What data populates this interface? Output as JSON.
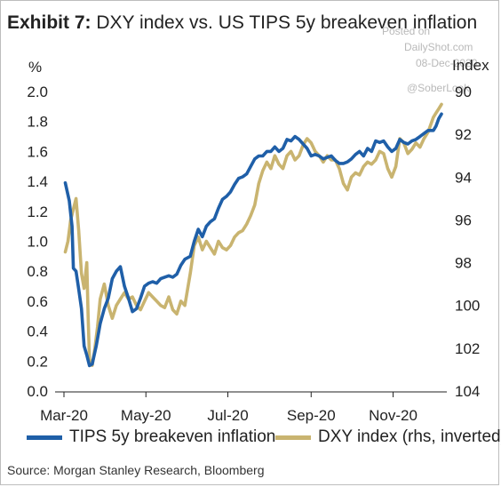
{
  "title_prefix": "Exhibit 7:",
  "title_text": "DXY index vs. US TIPS 5y breakeven inflation",
  "watermark": {
    "line1": "Posted on",
    "line2": "DailyShot.com",
    "line3": "08-Dec-2020",
    "line4": "@SoberLook"
  },
  "source": "Source: Morgan Stanley Research, Bloomberg",
  "colors": {
    "tips": "#1f5fa8",
    "dxy": "#c9b470"
  },
  "chart_data": {
    "type": "line",
    "left_axis": {
      "unit": "%",
      "range": [
        0,
        2
      ],
      "ticks": [
        "0.0",
        "0.2",
        "0.4",
        "0.6",
        "0.8",
        "1.0",
        "1.2",
        "1.4",
        "1.6",
        "1.8",
        "2.0"
      ]
    },
    "right_axis": {
      "unit": "Index",
      "inverted": true,
      "range": [
        90,
        104
      ],
      "ticks": [
        "90",
        "92",
        "94",
        "96",
        "98",
        "100",
        "102",
        "104"
      ]
    },
    "x_axis": {
      "ticks": [
        "Mar-20",
        "May-20",
        "Jul-20",
        "Sep-20",
        "Nov-20"
      ]
    },
    "series": [
      {
        "name": "TIPS 5y breakeven inflation",
        "axis": "left",
        "points": [
          [
            "Mar-02",
            1.39
          ],
          [
            "Mar-05",
            1.27
          ],
          [
            "Mar-07",
            1.1
          ],
          [
            "Mar-08",
            0.82
          ],
          [
            "Mar-10",
            0.8
          ],
          [
            "Mar-12",
            0.68
          ],
          [
            "Mar-14",
            0.55
          ],
          [
            "Mar-16",
            0.3
          ],
          [
            "Mar-18",
            0.24
          ],
          [
            "Mar-20",
            0.17
          ],
          [
            "Mar-22",
            0.18
          ],
          [
            "Mar-25",
            0.3
          ],
          [
            "Mar-28",
            0.45
          ],
          [
            "Mar-31",
            0.55
          ],
          [
            "Apr-03",
            0.62
          ],
          [
            "Apr-06",
            0.75
          ],
          [
            "Apr-09",
            0.8
          ],
          [
            "Apr-12",
            0.83
          ],
          [
            "Apr-15",
            0.7
          ],
          [
            "Apr-18",
            0.62
          ],
          [
            "Apr-21",
            0.53
          ],
          [
            "Apr-24",
            0.55
          ],
          [
            "Apr-27",
            0.62
          ],
          [
            "Apr-30",
            0.7
          ],
          [
            "May-03",
            0.72
          ],
          [
            "May-06",
            0.73
          ],
          [
            "May-09",
            0.72
          ],
          [
            "May-12",
            0.75
          ],
          [
            "May-15",
            0.76
          ],
          [
            "May-18",
            0.77
          ],
          [
            "May-21",
            0.76
          ],
          [
            "May-24",
            0.78
          ],
          [
            "May-27",
            0.84
          ],
          [
            "May-30",
            0.88
          ],
          [
            "Jun-03",
            0.9
          ],
          [
            "Jun-06",
            1.0
          ],
          [
            "Jun-09",
            1.08
          ],
          [
            "Jun-12",
            1.03
          ],
          [
            "Jun-15",
            1.1
          ],
          [
            "Jun-18",
            1.13
          ],
          [
            "Jun-21",
            1.15
          ],
          [
            "Jun-24",
            1.22
          ],
          [
            "Jun-27",
            1.28
          ],
          [
            "Jun-30",
            1.3
          ],
          [
            "Jul-03",
            1.33
          ],
          [
            "Jul-06",
            1.38
          ],
          [
            "Jul-09",
            1.42
          ],
          [
            "Jul-12",
            1.43
          ],
          [
            "Jul-15",
            1.45
          ],
          [
            "Jul-18",
            1.5
          ],
          [
            "Jul-21",
            1.55
          ],
          [
            "Jul-24",
            1.57
          ],
          [
            "Jul-27",
            1.57
          ],
          [
            "Jul-30",
            1.6
          ],
          [
            "Aug-02",
            1.6
          ],
          [
            "Aug-05",
            1.63
          ],
          [
            "Aug-08",
            1.6
          ],
          [
            "Aug-11",
            1.62
          ],
          [
            "Aug-14",
            1.68
          ],
          [
            "Aug-17",
            1.67
          ],
          [
            "Aug-20",
            1.7
          ],
          [
            "Aug-23",
            1.68
          ],
          [
            "Aug-26",
            1.65
          ],
          [
            "Aug-29",
            1.62
          ],
          [
            "Sep-01",
            1.57
          ],
          [
            "Sep-04",
            1.58
          ],
          [
            "Sep-07",
            1.57
          ],
          [
            "Sep-10",
            1.55
          ],
          [
            "Sep-13",
            1.56
          ],
          [
            "Sep-16",
            1.57
          ],
          [
            "Sep-19",
            1.54
          ],
          [
            "Sep-22",
            1.52
          ],
          [
            "Sep-25",
            1.52
          ],
          [
            "Sep-28",
            1.53
          ],
          [
            "Oct-01",
            1.55
          ],
          [
            "Oct-04",
            1.58
          ],
          [
            "Oct-07",
            1.6
          ],
          [
            "Oct-10",
            1.57
          ],
          [
            "Oct-13",
            1.62
          ],
          [
            "Oct-16",
            1.6
          ],
          [
            "Oct-19",
            1.67
          ],
          [
            "Oct-22",
            1.66
          ],
          [
            "Oct-25",
            1.67
          ],
          [
            "Oct-28",
            1.63
          ],
          [
            "Oct-31",
            1.6
          ],
          [
            "Nov-03",
            1.62
          ],
          [
            "Nov-06",
            1.68
          ],
          [
            "Nov-09",
            1.66
          ],
          [
            "Nov-12",
            1.65
          ],
          [
            "Nov-15",
            1.67
          ],
          [
            "Nov-18",
            1.68
          ],
          [
            "Nov-21",
            1.7
          ],
          [
            "Nov-24",
            1.72
          ],
          [
            "Nov-27",
            1.74
          ],
          [
            "Dec-01",
            1.74
          ],
          [
            "Dec-03",
            1.77
          ],
          [
            "Dec-05",
            1.82
          ],
          [
            "Dec-07",
            1.85
          ]
        ]
      },
      {
        "name": "DXY index (rhs, inverted)",
        "axis": "right",
        "points": [
          [
            "Mar-02",
            97.5
          ],
          [
            "Mar-04",
            97.0
          ],
          [
            "Mar-06",
            96.0
          ],
          [
            "Mar-08",
            95.5
          ],
          [
            "Mar-10",
            95.0
          ],
          [
            "Mar-12",
            96.5
          ],
          [
            "Mar-14",
            98.5
          ],
          [
            "Mar-16",
            99.2
          ],
          [
            "Mar-18",
            98.0
          ],
          [
            "Mar-19",
            100.5
          ],
          [
            "Mar-20",
            102.5
          ],
          [
            "Mar-22",
            102.8
          ],
          [
            "Mar-24",
            102.0
          ],
          [
            "Mar-26",
            101.0
          ],
          [
            "Mar-28",
            99.7
          ],
          [
            "Mar-31",
            99.0
          ],
          [
            "Apr-03",
            100.0
          ],
          [
            "Apr-06",
            100.6
          ],
          [
            "Apr-09",
            100.0
          ],
          [
            "Apr-12",
            99.7
          ],
          [
            "Apr-15",
            99.4
          ],
          [
            "Apr-18",
            99.7
          ],
          [
            "Apr-21",
            99.6
          ],
          [
            "Apr-24",
            100.0
          ],
          [
            "Apr-27",
            100.2
          ],
          [
            "Apr-30",
            99.8
          ],
          [
            "May-03",
            99.4
          ],
          [
            "May-06",
            99.6
          ],
          [
            "May-09",
            99.8
          ],
          [
            "May-12",
            100.0
          ],
          [
            "May-15",
            100.1
          ],
          [
            "May-18",
            99.6
          ],
          [
            "May-21",
            100.2
          ],
          [
            "May-24",
            100.4
          ],
          [
            "May-27",
            99.8
          ],
          [
            "May-30",
            100.0
          ],
          [
            "Jun-03",
            98.5
          ],
          [
            "Jun-06",
            97.2
          ],
          [
            "Jun-09",
            96.8
          ],
          [
            "Jun-12",
            97.4
          ],
          [
            "Jun-15",
            97.0
          ],
          [
            "Jun-18",
            97.3
          ],
          [
            "Jun-21",
            97.6
          ],
          [
            "Jun-24",
            97.0
          ],
          [
            "Jun-27",
            97.3
          ],
          [
            "Jun-30",
            97.4
          ],
          [
            "Jul-03",
            97.2
          ],
          [
            "Jul-06",
            96.8
          ],
          [
            "Jul-09",
            96.6
          ],
          [
            "Jul-12",
            96.5
          ],
          [
            "Jul-15",
            96.2
          ],
          [
            "Jul-18",
            95.8
          ],
          [
            "Jul-21",
            95.3
          ],
          [
            "Jul-24",
            94.3
          ],
          [
            "Jul-27",
            93.7
          ],
          [
            "Jul-30",
            93.3
          ],
          [
            "Aug-02",
            93.6
          ],
          [
            "Aug-05",
            93.0
          ],
          [
            "Aug-08",
            93.4
          ],
          [
            "Aug-11",
            93.6
          ],
          [
            "Aug-14",
            93.0
          ],
          [
            "Aug-17",
            92.8
          ],
          [
            "Aug-20",
            93.2
          ],
          [
            "Aug-23",
            93.0
          ],
          [
            "Aug-26",
            92.5
          ],
          [
            "Aug-29",
            92.2
          ],
          [
            "Sep-01",
            92.4
          ],
          [
            "Sep-04",
            92.8
          ],
          [
            "Sep-07",
            93.0
          ],
          [
            "Sep-10",
            93.3
          ],
          [
            "Sep-13",
            93.0
          ],
          [
            "Sep-16",
            93.2
          ],
          [
            "Sep-19",
            93.2
          ],
          [
            "Sep-22",
            93.6
          ],
          [
            "Sep-25",
            94.3
          ],
          [
            "Sep-28",
            94.6
          ],
          [
            "Oct-01",
            94.0
          ],
          [
            "Oct-04",
            93.8
          ],
          [
            "Oct-07",
            93.9
          ],
          [
            "Oct-10",
            93.5
          ],
          [
            "Oct-13",
            93.3
          ],
          [
            "Oct-16",
            93.4
          ],
          [
            "Oct-19",
            93.2
          ],
          [
            "Oct-22",
            92.8
          ],
          [
            "Oct-25",
            92.9
          ],
          [
            "Oct-28",
            93.6
          ],
          [
            "Oct-31",
            94.0
          ],
          [
            "Nov-03",
            93.5
          ],
          [
            "Nov-06",
            92.2
          ],
          [
            "Nov-09",
            92.4
          ],
          [
            "Nov-12",
            92.9
          ],
          [
            "Nov-15",
            92.7
          ],
          [
            "Nov-18",
            92.4
          ],
          [
            "Nov-21",
            92.6
          ],
          [
            "Nov-24",
            92.2
          ],
          [
            "Nov-27",
            91.9
          ],
          [
            "Dec-01",
            91.2
          ],
          [
            "Dec-03",
            91.0
          ],
          [
            "Dec-05",
            90.8
          ],
          [
            "Dec-07",
            90.6
          ]
        ]
      }
    ],
    "legend_position": "bottom",
    "grid": false
  }
}
